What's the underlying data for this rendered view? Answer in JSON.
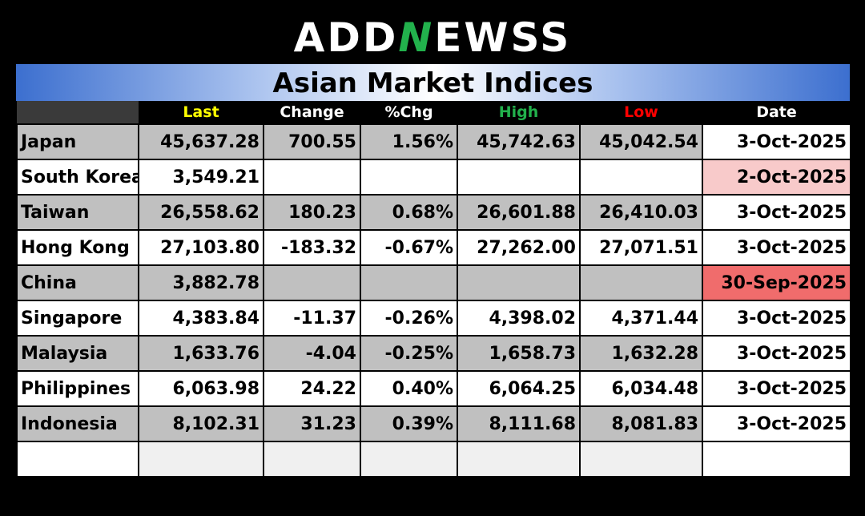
{
  "logo": {
    "pre": "ADD",
    "mid": "N",
    "post": "EWSS"
  },
  "title": "Asian Market Indices",
  "headers": [
    "",
    "Last",
    "Change",
    "%Chg",
    "High",
    "Low",
    "Date"
  ],
  "rows": [
    {
      "name": "Japan",
      "last": "45,637.28",
      "change": "700.55",
      "pct": "1.56%",
      "high": "45,742.63",
      "low": "45,042.54",
      "date": "3-Oct-2025",
      "dir": "pos",
      "date_flag": "",
      "shade": "g"
    },
    {
      "name": "South Korea",
      "last": "3,549.21",
      "change": "",
      "pct": "",
      "high": "",
      "low": "",
      "date": "2-Oct-2025",
      "dir": "",
      "date_flag": "pink",
      "shade": "w"
    },
    {
      "name": "Taiwan",
      "last": "26,558.62",
      "change": "180.23",
      "pct": "0.68%",
      "high": "26,601.88",
      "low": "26,410.03",
      "date": "3-Oct-2025",
      "dir": "pos",
      "date_flag": "",
      "shade": "g"
    },
    {
      "name": "Hong Kong",
      "last": "27,103.80",
      "change": "-183.32",
      "pct": "-0.67%",
      "high": "27,262.00",
      "low": "27,071.51",
      "date": "3-Oct-2025",
      "dir": "neg",
      "date_flag": "",
      "shade": "w"
    },
    {
      "name": "China",
      "last": "3,882.78",
      "change": "",
      "pct": "",
      "high": "",
      "low": "",
      "date": "30-Sep-2025",
      "dir": "",
      "date_flag": "red",
      "shade": "g"
    },
    {
      "name": "Singapore",
      "last": "4,383.84",
      "change": "-11.37",
      "pct": "-0.26%",
      "high": "4,398.02",
      "low": "4,371.44",
      "date": "3-Oct-2025",
      "dir": "neg",
      "date_flag": "",
      "shade": "w"
    },
    {
      "name": "Malaysia",
      "last": "1,633.76",
      "change": "-4.04",
      "pct": "-0.25%",
      "high": "1,658.73",
      "low": "1,632.28",
      "date": "3-Oct-2025",
      "dir": "neg",
      "date_flag": "",
      "shade": "g"
    },
    {
      "name": "Philippines",
      "last": "6,063.98",
      "change": "24.22",
      "pct": "0.40%",
      "high": "6,064.25",
      "low": "6,034.48",
      "date": "3-Oct-2025",
      "dir": "pos",
      "date_flag": "",
      "shade": "w"
    },
    {
      "name": "Indonesia",
      "last": "8,102.31",
      "change": "31.23",
      "pct": "0.39%",
      "high": "8,111.68",
      "low": "8,081.83",
      "date": "3-Oct-2025",
      "dir": "pos",
      "date_flag": "",
      "shade": "g"
    }
  ],
  "colors": {
    "positive": "#1a8a1a",
    "negative": "#ff0000",
    "last_header": "#ffff00",
    "high_header": "#22b14c",
    "low_header": "#ff0000"
  }
}
